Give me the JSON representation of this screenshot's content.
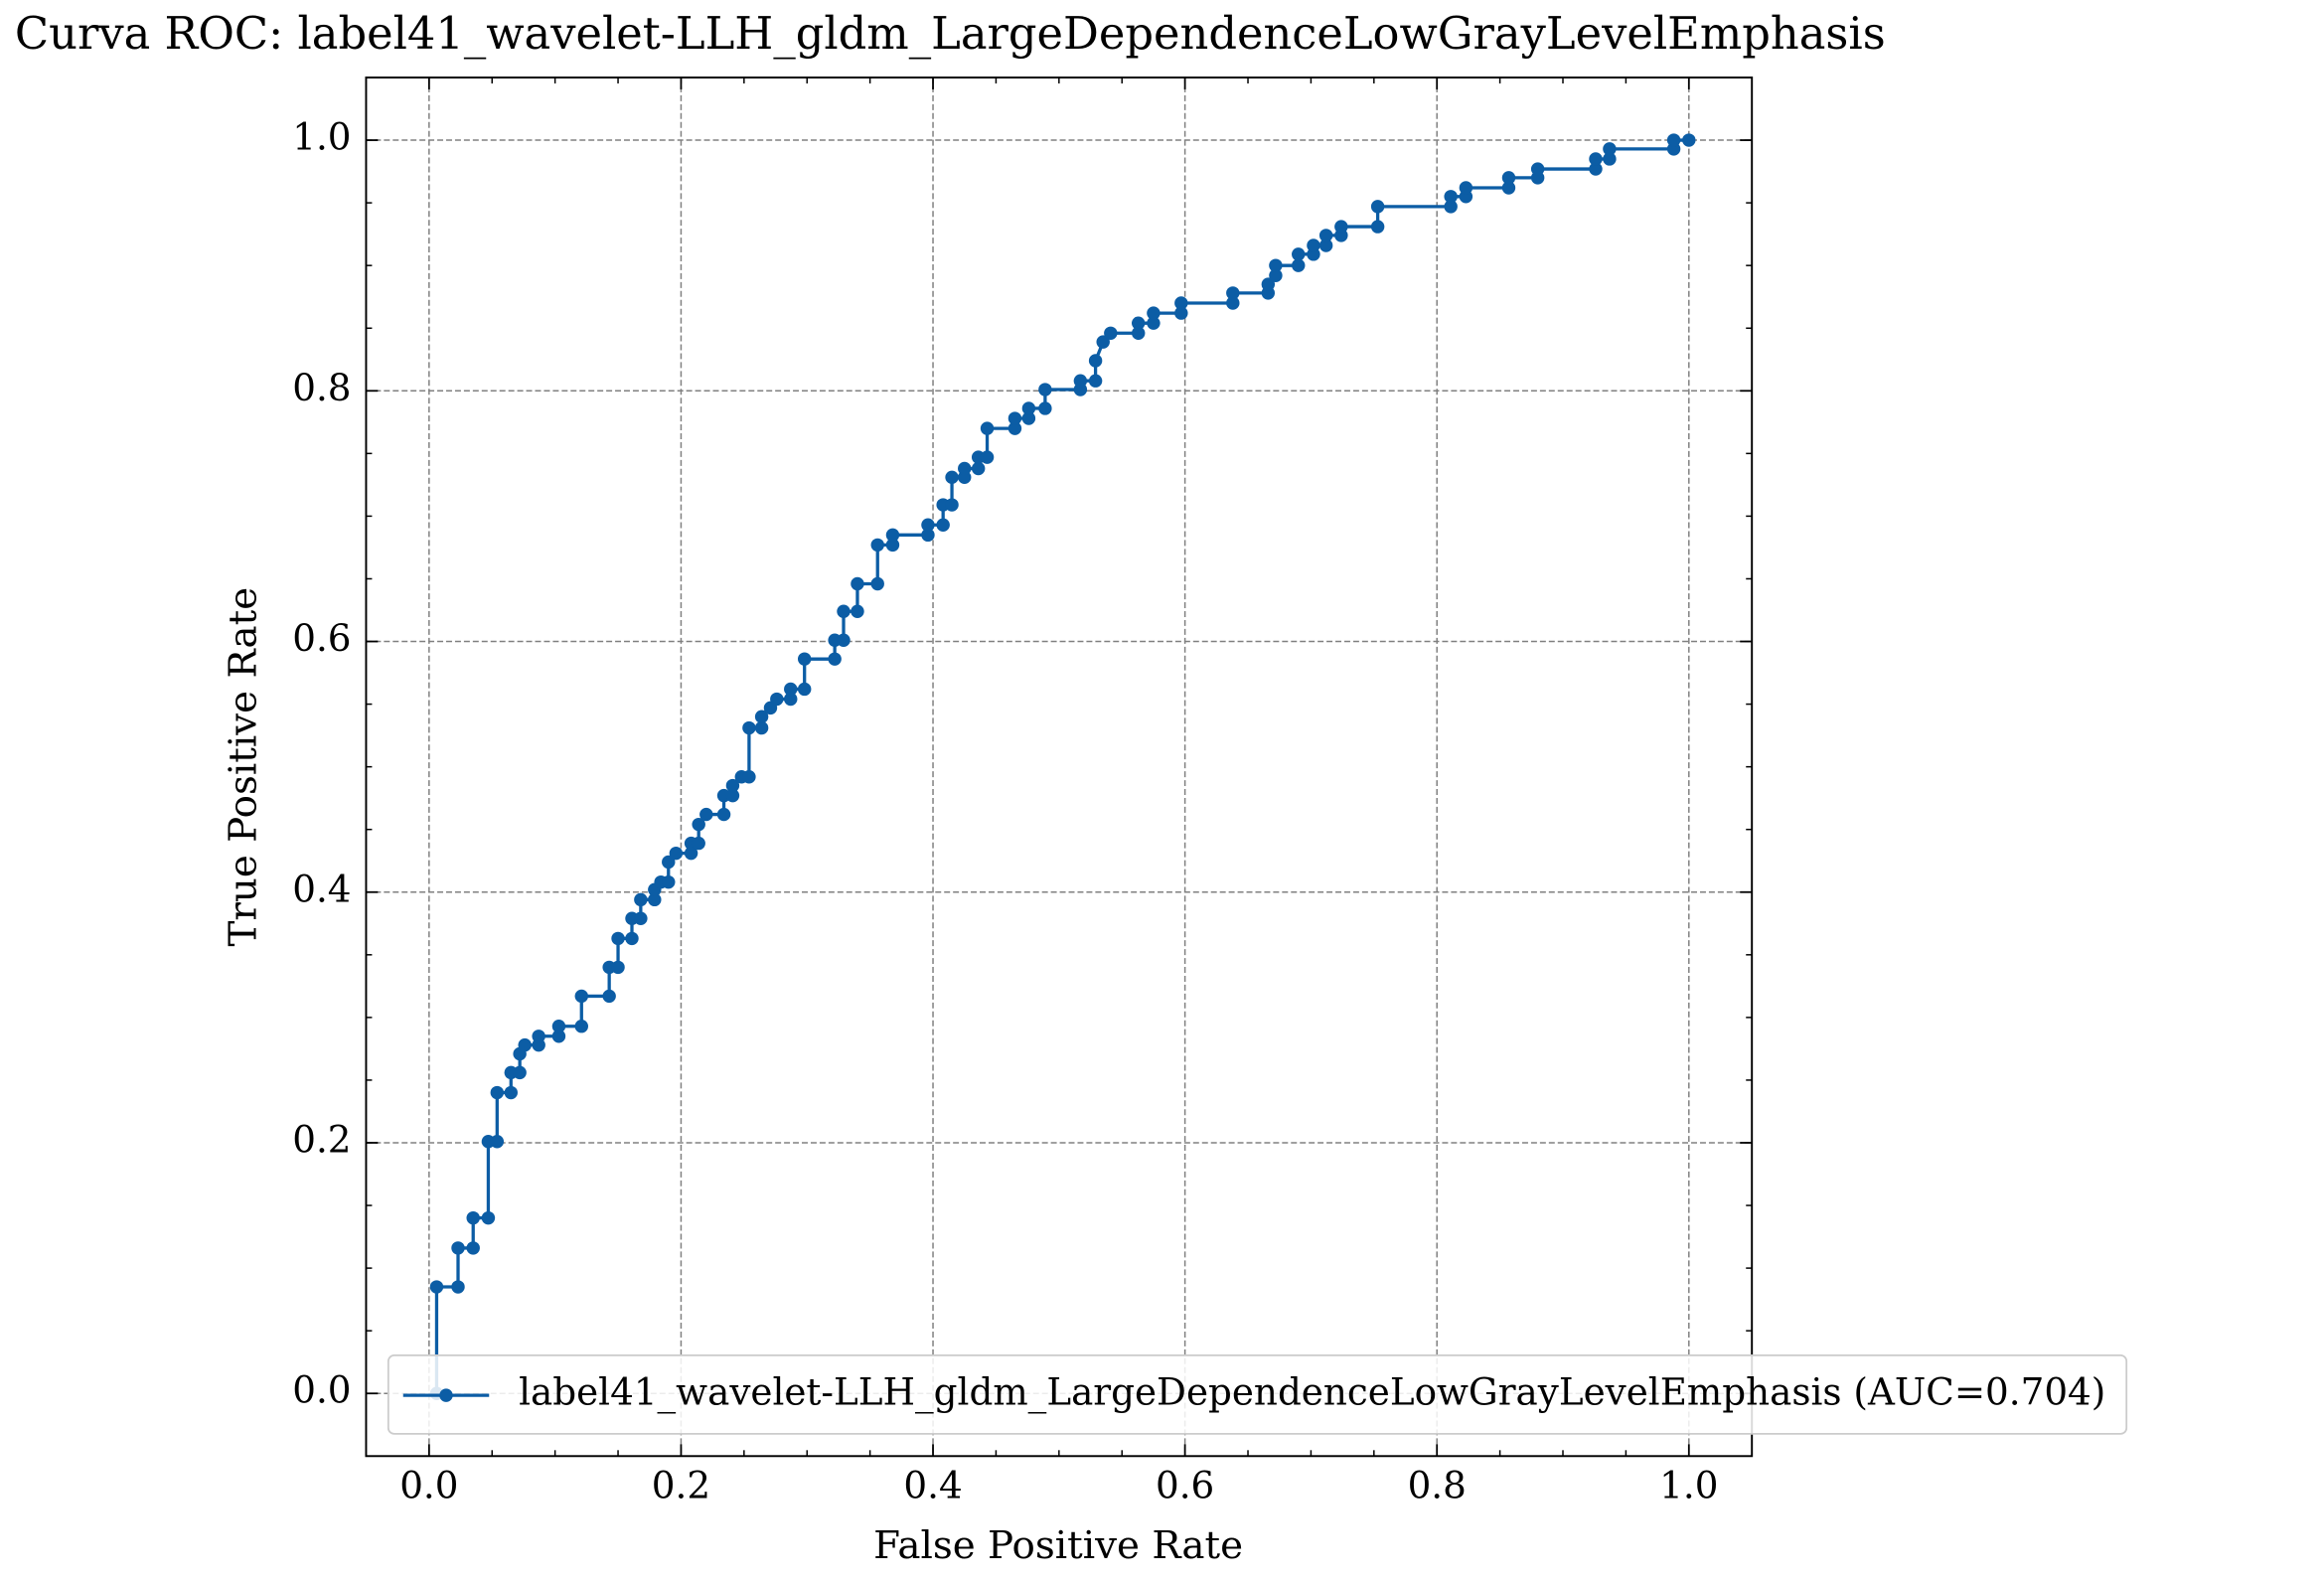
{
  "chart_data": {
    "type": "line",
    "title": "Curva ROC: label41_wavelet-LLH_gldm_LargeDependenceLowGrayLevelEmphasis",
    "xlabel": "False Positive Rate",
    "ylabel": "True Positive Rate",
    "x": [
      0.006,
      0.006,
      0.023,
      0.023,
      0.035,
      0.035,
      0.047,
      0.047,
      0.054,
      0.054,
      0.065,
      0.065,
      0.072,
      0.072,
      0.076,
      0.087,
      0.087,
      0.103,
      0.103,
      0.121,
      0.121,
      0.143,
      0.143,
      0.15,
      0.15,
      0.161,
      0.161,
      0.168,
      0.168,
      0.179,
      0.179,
      0.184,
      0.19,
      0.19,
      0.196,
      0.208,
      0.208,
      0.214,
      0.214,
      0.22,
      0.234,
      0.234,
      0.241,
      0.241,
      0.248,
      0.254,
      0.254,
      0.264,
      0.264,
      0.271,
      0.276,
      0.287,
      0.287,
      0.298,
      0.298,
      0.322,
      0.322,
      0.329,
      0.329,
      0.34,
      0.34,
      0.356,
      0.356,
      0.368,
      0.368,
      0.396,
      0.396,
      0.408,
      0.408,
      0.415,
      0.415,
      0.425,
      0.425,
      0.436,
      0.436,
      0.443,
      0.443,
      0.465,
      0.465,
      0.476,
      0.476,
      0.489,
      0.489,
      0.517,
      0.517,
      0.529,
      0.529,
      0.535,
      0.541,
      0.563,
      0.563,
      0.575,
      0.575,
      0.597,
      0.597,
      0.638,
      0.638,
      0.666,
      0.666,
      0.672,
      0.672,
      0.69,
      0.69,
      0.702,
      0.702,
      0.712,
      0.712,
      0.724,
      0.724,
      0.753,
      0.753,
      0.811,
      0.811,
      0.823,
      0.823,
      0.857,
      0.857,
      0.88,
      0.88,
      0.926,
      0.926,
      0.937,
      0.937,
      0.988,
      0.988,
      1.0
    ],
    "series": [
      {
        "name": "label41_wavelet-LLH_gldm_LargeDependenceLowGrayLevelEmphasis (AUC=0.704)",
        "color": "#0C5DA5",
        "values": [
          0.0,
          0.085,
          0.085,
          0.116,
          0.116,
          0.14,
          0.14,
          0.201,
          0.201,
          0.24,
          0.24,
          0.256,
          0.256,
          0.271,
          0.278,
          0.278,
          0.285,
          0.285,
          0.293,
          0.293,
          0.317,
          0.317,
          0.34,
          0.34,
          0.363,
          0.363,
          0.379,
          0.379,
          0.394,
          0.394,
          0.402,
          0.408,
          0.408,
          0.424,
          0.431,
          0.431,
          0.439,
          0.439,
          0.454,
          0.462,
          0.462,
          0.477,
          0.477,
          0.485,
          0.492,
          0.492,
          0.531,
          0.531,
          0.54,
          0.547,
          0.554,
          0.554,
          0.562,
          0.562,
          0.586,
          0.586,
          0.601,
          0.601,
          0.624,
          0.624,
          0.646,
          0.646,
          0.677,
          0.677,
          0.685,
          0.685,
          0.693,
          0.693,
          0.709,
          0.709,
          0.731,
          0.731,
          0.738,
          0.738,
          0.747,
          0.747,
          0.77,
          0.77,
          0.778,
          0.778,
          0.786,
          0.786,
          0.801,
          0.801,
          0.808,
          0.808,
          0.824,
          0.839,
          0.846,
          0.846,
          0.854,
          0.854,
          0.862,
          0.862,
          0.87,
          0.87,
          0.878,
          0.878,
          0.885,
          0.892,
          0.9,
          0.9,
          0.909,
          0.909,
          0.916,
          0.916,
          0.924,
          0.924,
          0.931,
          0.931,
          0.947,
          0.947,
          0.955,
          0.955,
          0.962,
          0.962,
          0.97,
          0.97,
          0.977,
          0.977,
          0.985,
          0.985,
          0.993,
          0.993,
          1.0,
          1.0
        ]
      }
    ],
    "xlim": [
      -0.05,
      1.05
    ],
    "ylim": [
      -0.05,
      1.05
    ],
    "xticks": [
      {
        "value": 0,
        "label": "0.0"
      },
      0.2,
      0.4,
      0.6,
      0.8,
      {
        "value": 1,
        "label": "1.0"
      }
    ],
    "yticks": [
      {
        "value": 0,
        "label": "0.0"
      },
      0.2,
      0.4,
      0.6,
      0.8,
      {
        "value": 1,
        "label": "1.0"
      }
    ],
    "xminorticks": [
      0.05,
      0.1,
      0.15,
      0.25,
      0.3,
      0.35,
      0.45,
      0.5,
      0.55,
      0.65,
      0.7,
      0.75,
      0.85,
      0.9,
      0.95
    ],
    "yminorticks": [
      0.05,
      0.1,
      0.15,
      0.25,
      0.3,
      0.35,
      0.45,
      0.5,
      0.55,
      0.65,
      0.7,
      0.75,
      0.85,
      0.9,
      0.95
    ],
    "grid": true,
    "legend_loc": "lower right"
  }
}
